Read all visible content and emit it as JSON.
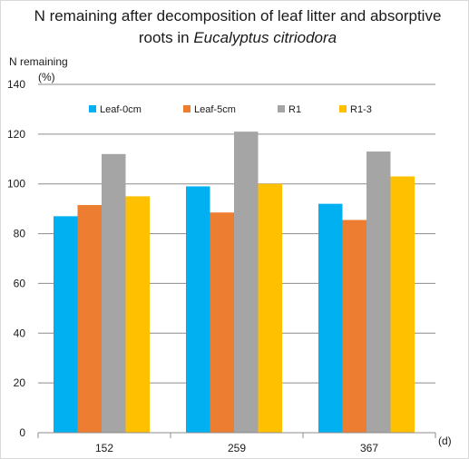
{
  "chart_data": {
    "type": "bar",
    "title_line1": "N remaining after decomposition of leaf litter and absorptive",
    "title_line2_plain": "roots in ",
    "title_line2_italic": "Eucalyptus citriodora",
    "ylabel_line1": "N remaining",
    "ylabel_line2": "(%)",
    "xlabel": "(d)",
    "categories": [
      "152",
      "259",
      "367"
    ],
    "ylim": [
      0,
      140
    ],
    "yticks": [
      0,
      20,
      40,
      60,
      80,
      100,
      120,
      140
    ],
    "grid": true,
    "legend_position": "top",
    "series": [
      {
        "name": "Leaf-0cm",
        "color": "#00b0f0",
        "values": [
          87,
          99,
          92
        ]
      },
      {
        "name": "Leaf-5cm",
        "color": "#ed7d31",
        "values": [
          91.5,
          88.5,
          85.5
        ]
      },
      {
        "name": "R1",
        "color": "#a5a5a5",
        "values": [
          112,
          121,
          113
        ]
      },
      {
        "name": "R1-3",
        "color": "#ffc000",
        "values": [
          95,
          100,
          103
        ]
      }
    ]
  }
}
